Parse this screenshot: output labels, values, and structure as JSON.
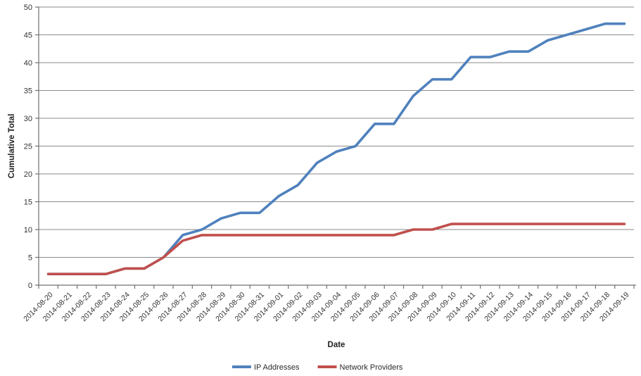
{
  "chart_data": {
    "type": "line",
    "title": "",
    "xlabel": "Date",
    "ylabel": "Cumulative Total",
    "x": [
      "2014-08-20",
      "2014-08-21",
      "2014-08-22",
      "2014-08-23",
      "2014-08-24",
      "2014-08-25",
      "2014-08-26",
      "2014-08-27",
      "2014-08-28",
      "2014-08-29",
      "2014-08-30",
      "2014-08-31",
      "2014-09-01",
      "2014-09-02",
      "2014-09-03",
      "2014-09-04",
      "2014-09-05",
      "2014-09-06",
      "2014-09-07",
      "2014-09-08",
      "2014-09-09",
      "2014-09-10",
      "2014-09-11",
      "2014-09-12",
      "2014-09-13",
      "2014-09-14",
      "2014-09-15",
      "2014-09-16",
      "2014-09-17",
      "2014-09-18",
      "2014-09-19"
    ],
    "series": [
      {
        "name": "IP Addresses",
        "color": "#4F81BD",
        "values": [
          2,
          2,
          2,
          2,
          3,
          3,
          5,
          9,
          10,
          12,
          13,
          13,
          16,
          18,
          22,
          24,
          25,
          29,
          29,
          34,
          37,
          37,
          41,
          41,
          42,
          42,
          44,
          45,
          46,
          47,
          47
        ]
      },
      {
        "name": "Network Providers",
        "color": "#C0504D",
        "values": [
          2,
          2,
          2,
          2,
          3,
          3,
          5,
          8,
          9,
          9,
          9,
          9,
          9,
          9,
          9,
          9,
          9,
          9,
          9,
          10,
          10,
          11,
          11,
          11,
          11,
          11,
          11,
          11,
          11,
          11,
          11
        ]
      }
    ],
    "ylim": [
      0,
      50
    ],
    "yticks": [
      0,
      5,
      10,
      15,
      20,
      25,
      30,
      35,
      40,
      45,
      50
    ],
    "grid": true,
    "grid_color": "#8B8B8B",
    "axis_color": "#707070",
    "legend_position": "bottom",
    "x_label_rotation_deg": 45
  }
}
